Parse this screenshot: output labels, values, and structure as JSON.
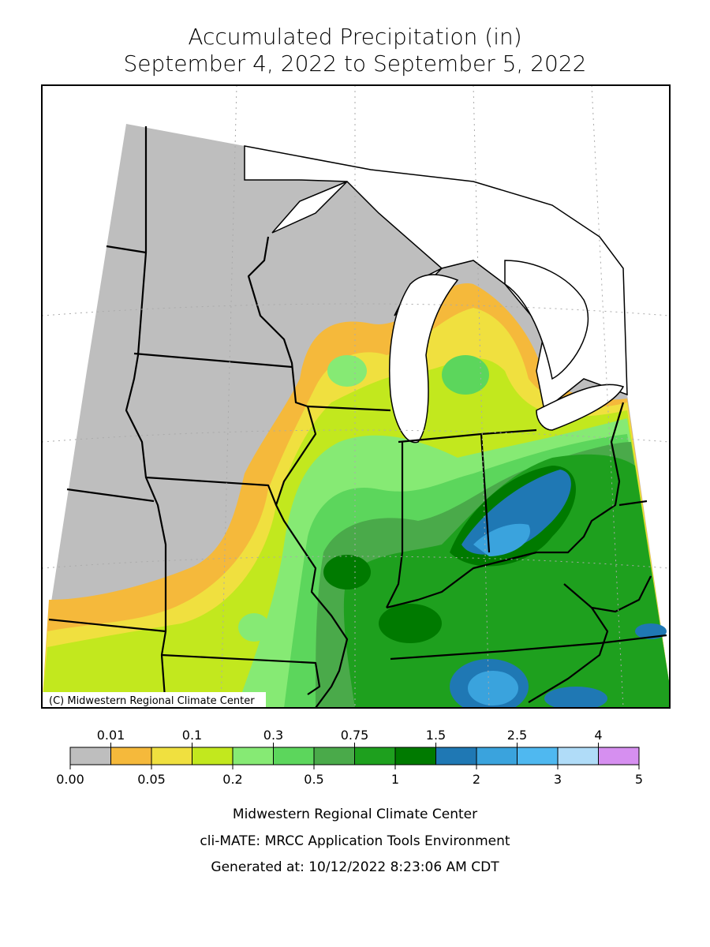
{
  "title": [
    "Accumulated Precipitation (in)",
    "September 4, 2022 to September 5, 2022"
  ],
  "map": {
    "copyright": "(C) Midwestern Regional Climate Center"
  },
  "legend": {
    "colors": [
      "#bebebe",
      "#f5b93b",
      "#f0e03f",
      "#c2e81e",
      "#86ea74",
      "#5cd65c",
      "#4aaa4a",
      "#1ea01e",
      "#007a00",
      "#1f78b4",
      "#3aa3dd",
      "#4fb8f0",
      "#b0dcf8",
      "#d68ff0"
    ],
    "top_labels": [
      "0.01",
      "0.1",
      "0.3",
      "0.75",
      "1.5",
      "2.5",
      "4"
    ],
    "bottom_labels": [
      "0.00",
      "0.05",
      "0.2",
      "0.5",
      "1",
      "2",
      "3",
      "5"
    ]
  },
  "footer": [
    "Midwestern Regional Climate Center",
    "cli-MATE: MRCC Application Tools Environment",
    "Generated at: 10/12/2022 8:23:06 AM CDT"
  ]
}
